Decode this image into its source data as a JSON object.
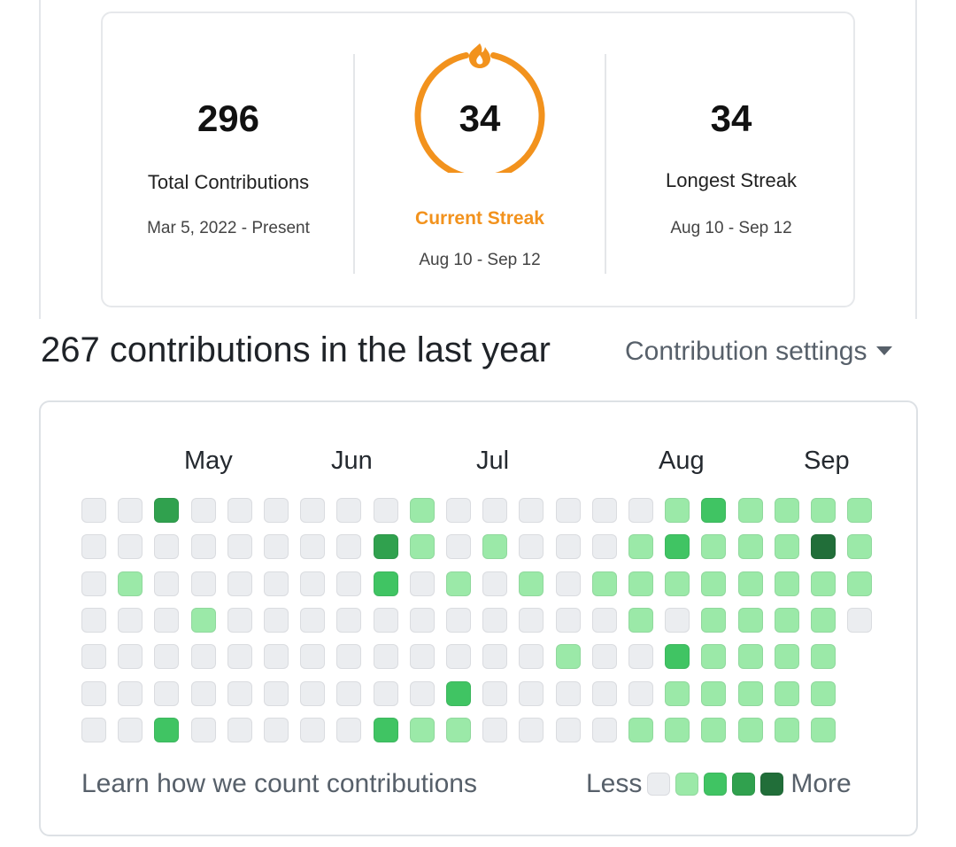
{
  "stats": {
    "total": {
      "value": "296",
      "label": "Total Contributions",
      "range": "Mar 5, 2022 - Present"
    },
    "current": {
      "value": "34",
      "label": "Current Streak",
      "range": "Aug 10 - Sep 12"
    },
    "longest": {
      "value": "34",
      "label": "Longest Streak",
      "range": "Aug 10 - Sep 12"
    },
    "accent_color": "#f2921d",
    "current_icon": "flame-icon"
  },
  "summary": {
    "headline": "267 contributions in the last year",
    "settings_label": "Contribution settings",
    "settings_icon": "caret-down-icon"
  },
  "graph": {
    "months": [
      "May",
      "Jun",
      "Jul",
      "Aug",
      "Sep"
    ],
    "levels_colors": [
      "#ebedf0",
      "#9be9a8",
      "#40c463",
      "#30a14e",
      "#216e39"
    ],
    "grid": [
      [
        0,
        0,
        0,
        0,
        0,
        0,
        0
      ],
      [
        0,
        0,
        1,
        0,
        0,
        0,
        0
      ],
      [
        3,
        0,
        0,
        0,
        0,
        0,
        2
      ],
      [
        0,
        0,
        0,
        1,
        0,
        0,
        0
      ],
      [
        0,
        0,
        0,
        0,
        0,
        0,
        0
      ],
      [
        0,
        0,
        0,
        0,
        0,
        0,
        0
      ],
      [
        0,
        0,
        0,
        0,
        0,
        0,
        0
      ],
      [
        0,
        0,
        0,
        0,
        0,
        0,
        0
      ],
      [
        0,
        3,
        2,
        0,
        0,
        0,
        2
      ],
      [
        1,
        1,
        0,
        0,
        0,
        0,
        1
      ],
      [
        0,
        0,
        1,
        0,
        0,
        2,
        1
      ],
      [
        0,
        1,
        0,
        0,
        0,
        0,
        0
      ],
      [
        0,
        0,
        1,
        0,
        0,
        0,
        0
      ],
      [
        0,
        0,
        0,
        0,
        1,
        0,
        0
      ],
      [
        0,
        0,
        1,
        0,
        0,
        0,
        0
      ],
      [
        0,
        1,
        1,
        1,
        0,
        0,
        1
      ],
      [
        1,
        2,
        1,
        0,
        2,
        1,
        1
      ],
      [
        2,
        1,
        1,
        1,
        1,
        1,
        1
      ],
      [
        1,
        1,
        1,
        1,
        1,
        1,
        1
      ],
      [
        1,
        1,
        1,
        1,
        1,
        1,
        1
      ],
      [
        1,
        4,
        1,
        1,
        1,
        1,
        1
      ],
      [
        1,
        1,
        1,
        0
      ]
    ],
    "learn_label": "Learn how we count contributions",
    "less_label": "Less",
    "more_label": "More"
  }
}
